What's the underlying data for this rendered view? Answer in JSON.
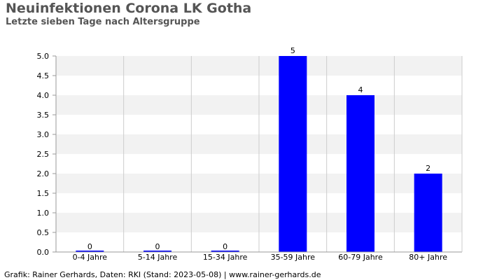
{
  "title": "Neuinfektionen Corona LK Gotha",
  "subtitle": "Letzte sieben Tage nach Altersgruppe",
  "footer": "Grafik: Rainer Gerhards, Daten: RKI (Stand: 2023-05-08) | www.rainer-gerhards.de",
  "colors": {
    "bar": "#0000ff",
    "band_alt": "#f2f2f2",
    "grid": "#cccccc",
    "axis": "#999999",
    "text": "#000000",
    "title": "#555555"
  },
  "chart_data": {
    "type": "bar",
    "categories": [
      "0-4 Jahre",
      "5-14 Jahre",
      "15-34 Jahre",
      "35-59 Jahre",
      "60-79 Jahre",
      "80+ Jahre"
    ],
    "values": [
      0,
      0,
      0,
      5,
      4,
      2
    ],
    "data_labels": [
      "0",
      "0",
      "0",
      "5",
      "4",
      "2"
    ],
    "title": "Neuinfektionen Corona LK Gotha",
    "subtitle": "Letzte sieben Tage nach Altersgruppe",
    "xlabel": "",
    "ylabel": "",
    "ylim": [
      0,
      5
    ],
    "yticks": [
      "0.0",
      "0.5",
      "1.0",
      "1.5",
      "2.0",
      "2.5",
      "3.0",
      "3.5",
      "4.0",
      "4.5",
      "5.0"
    ],
    "grid": true,
    "legend": "none"
  }
}
